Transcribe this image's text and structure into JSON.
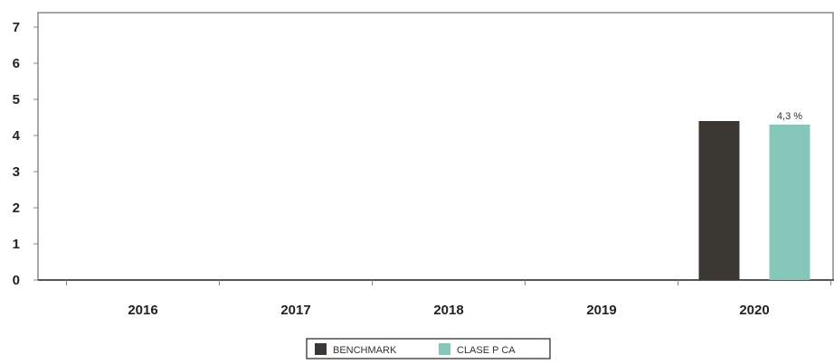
{
  "chart_data": {
    "type": "bar",
    "title": "",
    "xlabel": "",
    "ylabel": "",
    "categories": [
      "2016",
      "2017",
      "2018",
      "2019",
      "2020"
    ],
    "ylim": [
      0,
      7
    ],
    "yticks": [
      "0",
      "1",
      "2",
      "3",
      "4",
      "5",
      "6",
      "7"
    ],
    "grid": false,
    "legend_position": "bottom-center",
    "series": [
      {
        "name": "BENCHMARK",
        "color": "#3b3833",
        "values": [
          null,
          null,
          null,
          null,
          4.4
        ],
        "labels": [
          "",
          "",
          "",
          "",
          ""
        ]
      },
      {
        "name": "CLASE P CA",
        "color": "#85c7b9",
        "values": [
          null,
          null,
          null,
          null,
          4.3
        ],
        "labels": [
          "",
          "",
          "",
          "",
          "4,3 %"
        ]
      }
    ]
  }
}
